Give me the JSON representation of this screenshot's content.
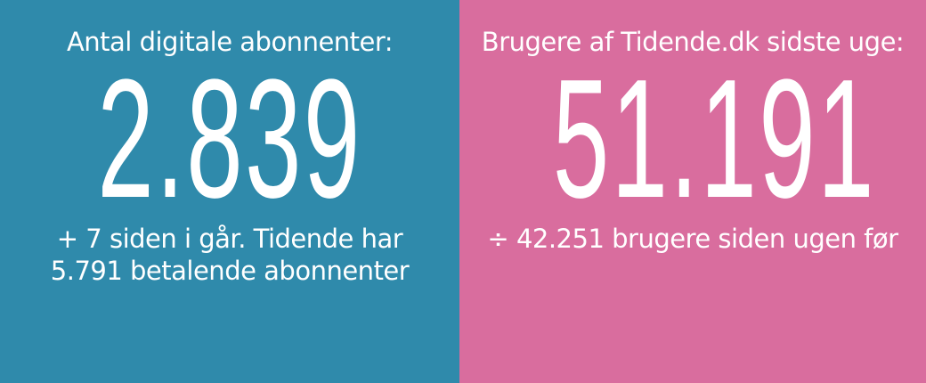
{
  "left": {
    "title": "Antal digitale abonnenter:",
    "value": "2.839",
    "sub_line1": "+ 7 siden i går. Tidende har",
    "sub_line2": "5.791 betalende abonnenter",
    "color": "#2f8aab"
  },
  "right": {
    "title": "Brugere af Tidende.dk sidste uge:",
    "value": "51.191",
    "sub_line1": "÷ 42.251 brugere siden ugen før",
    "color": "#d96d9e"
  }
}
